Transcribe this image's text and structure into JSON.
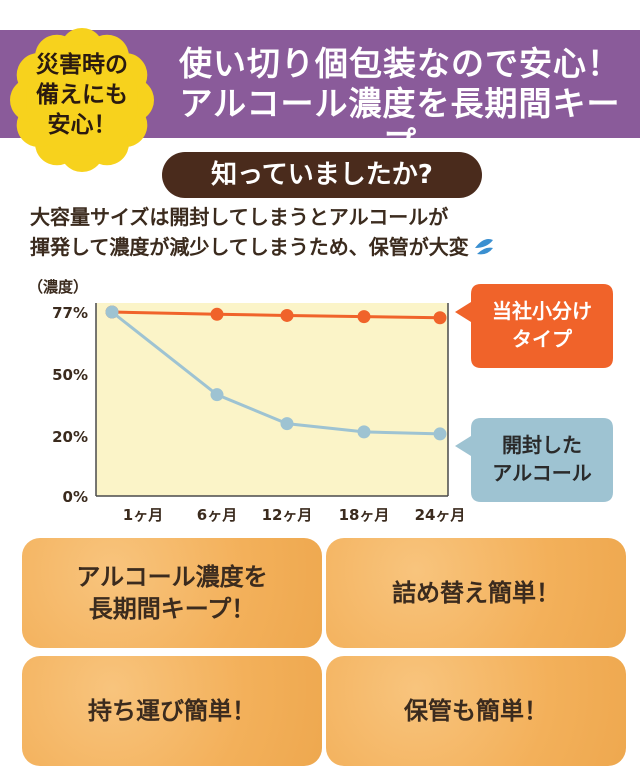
{
  "header": {
    "badge_lines": [
      "災害時の",
      "備えにも",
      "安心！"
    ],
    "title_lines": [
      "使い切り個包装なので安心！",
      "アルコール濃度を長期間キープ"
    ]
  },
  "question": "知っていましたか?",
  "description_lines": [
    "大容量サイズは開封してしまうとアルコールが",
    "揮発して濃度が減少してしまうため、保管が大変"
  ],
  "chart_data": {
    "type": "line",
    "title": "",
    "ylabel": "（濃度）",
    "xlabel": "",
    "categories": [
      "0",
      "1ヶ月",
      "6ヶ月",
      "12ヶ月",
      "18ヶ月",
      "24ヶ月"
    ],
    "x_tick_labels": [
      "1ヶ月",
      "6ヶ月",
      "12ヶ月",
      "18ヶ月",
      "24ヶ月"
    ],
    "y_ticks": [
      {
        "value": 0,
        "label": "0%"
      },
      {
        "value": 20,
        "label": "20%"
      },
      {
        "value": 50,
        "label": "50%"
      },
      {
        "value": 77,
        "label": "77%"
      }
    ],
    "ylim": [
      0,
      77
    ],
    "series": [
      {
        "name": "当社小分けタイプ",
        "label_lines": [
          "当社小分け",
          "タイプ"
        ],
        "color": "#f0632a",
        "x": [
          0,
          6,
          12,
          18,
          24
        ],
        "values": [
          77,
          76,
          75.5,
          75,
          74.5
        ]
      },
      {
        "name": "開封したアルコール",
        "label_lines": [
          "開封した",
          "アルコール"
        ],
        "color": "#9ec3d2",
        "x": [
          0,
          6,
          12,
          18,
          24
        ],
        "values": [
          77,
          40,
          26,
          22,
          21
        ]
      }
    ],
    "plot_background": "#fbf4c8",
    "grid": false
  },
  "features": [
    {
      "lines": [
        "アルコール濃度を",
        "長期間キープ！"
      ]
    },
    {
      "lines": [
        "詰め替え簡単！"
      ]
    },
    {
      "lines": [
        "持ち運び簡単！"
      ]
    },
    {
      "lines": [
        "保管も簡単！"
      ]
    }
  ],
  "colors": {
    "banner": "#8a5b9a",
    "badge": "#f7d21d",
    "pill": "#4a2b1c",
    "feature": "#f5b867"
  }
}
